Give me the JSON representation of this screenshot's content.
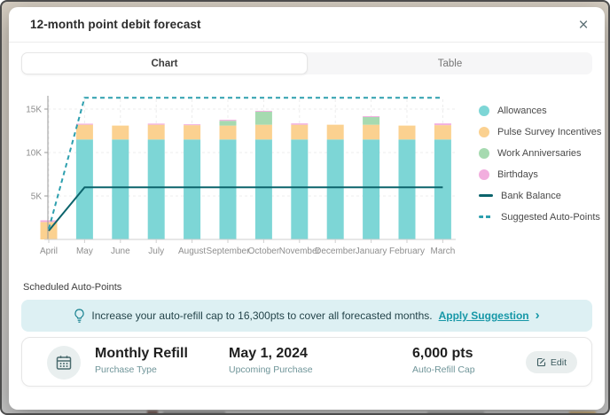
{
  "modal": {
    "title": "12-month point debit forecast",
    "close_glyph": "×"
  },
  "tabs": [
    {
      "label": "Chart",
      "active": true
    },
    {
      "label": "Table",
      "active": false
    }
  ],
  "chart_data": {
    "type": "bar",
    "subtype": "stacked-bars-with-lines",
    "categories": [
      "April",
      "May",
      "June",
      "July",
      "August",
      "September",
      "October",
      "November",
      "December",
      "January",
      "February",
      "March"
    ],
    "series": [
      {
        "name": "Allowances",
        "color": "#7dd6d6",
        "values": [
          0,
          11500,
          11500,
          11500,
          11500,
          11500,
          11500,
          11500,
          11500,
          11500,
          11500,
          11500
        ]
      },
      {
        "name": "Pulse Survey Incentives",
        "color": "#fbd190",
        "values": [
          2000,
          1700,
          1600,
          1700,
          1650,
          1600,
          1700,
          1700,
          1700,
          1700,
          1600,
          1650
        ]
      },
      {
        "name": "Work Anniversaries",
        "color": "#a6dab0",
        "values": [
          0,
          0,
          0,
          0,
          0,
          550,
          1500,
          0,
          0,
          900,
          0,
          0
        ]
      },
      {
        "name": "Birthdays",
        "color": "#f2aede",
        "values": [
          200,
          120,
          0,
          130,
          100,
          120,
          100,
          150,
          0,
          80,
          0,
          200
        ]
      }
    ],
    "lines": [
      {
        "name": "Bank Balance",
        "style": "solid",
        "color": "#0c646c",
        "points": [
          1000,
          6000,
          6000,
          6000,
          6000,
          6000,
          6000,
          6000,
          6000,
          6000,
          6000,
          6000
        ]
      },
      {
        "name": "Suggested Auto-Points",
        "style": "dashed",
        "color": "#2d9fae",
        "points": [
          1200,
          16300,
          16300,
          16300,
          16300,
          16300,
          16300,
          16300,
          16300,
          16300,
          16300,
          16300
        ]
      }
    ],
    "y_ticks": [
      "5K",
      "10K",
      "15K"
    ],
    "y_tick_values": [
      5000,
      10000,
      15000
    ],
    "ylim": [
      0,
      17000
    ],
    "grid": true,
    "legend_position": "right",
    "legend": [
      {
        "label": "Allowances",
        "marker": "circle",
        "color": "#7dd6d6"
      },
      {
        "label": "Pulse Survey Incentives",
        "marker": "circle",
        "color": "#fbd190"
      },
      {
        "label": "Work Anniversaries",
        "marker": "circle",
        "color": "#a6dab0"
      },
      {
        "label": "Birthdays",
        "marker": "circle",
        "color": "#f2aede"
      },
      {
        "label": "Bank Balance",
        "marker": "line",
        "color": "#0c646c"
      },
      {
        "label": "Suggested Auto-Points",
        "marker": "dashed-line",
        "color": "#2d9fae"
      }
    ]
  },
  "scheduled": {
    "heading": "Scheduled Auto-Points",
    "banner": {
      "message": "Increase your auto-refill cap to 16,300pts to cover all forecasted months.",
      "action": "Apply Suggestion",
      "chevron": "›"
    },
    "card": {
      "purchase_type_value": "Monthly Refill",
      "purchase_type_label": "Purchase Type",
      "upcoming_value": "May 1, 2024",
      "upcoming_label": "Upcoming Purchase",
      "cap_value": "6,000 pts",
      "cap_label": "Auto-Refill Cap",
      "edit_label": "Edit"
    }
  }
}
